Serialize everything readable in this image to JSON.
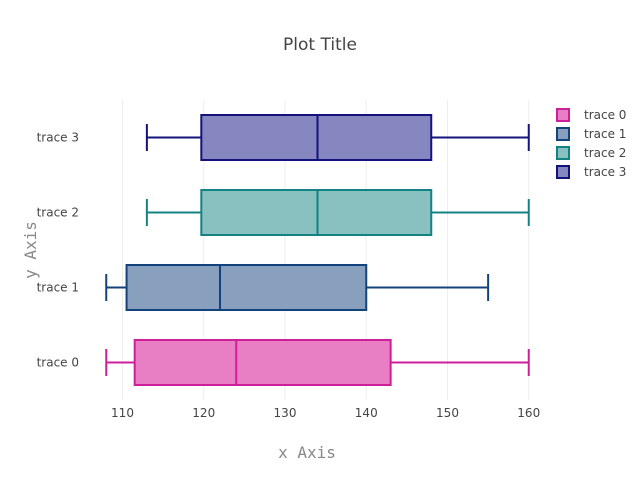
{
  "chart_data": {
    "type": "box",
    "title": "Plot Title",
    "xlabel": "x Axis",
    "ylabel": "y Axis",
    "xlim": [
      106,
      162
    ],
    "xticks": [
      110,
      120,
      130,
      140,
      150,
      160
    ],
    "grid": true,
    "legend_position": "top-right",
    "series": [
      {
        "name": "trace 0",
        "min": 108,
        "q1": 111.5,
        "median": 124,
        "q3": 143,
        "max": 160,
        "color": "#cc1f99",
        "fill": "#e87ec4"
      },
      {
        "name": "trace 1",
        "min": 108,
        "q1": 110.5,
        "median": 122,
        "q3": 140,
        "max": 155,
        "color": "#13437b",
        "fill": "#889fbd"
      },
      {
        "name": "trace 2",
        "min": 113,
        "q1": 119.7,
        "median": 134,
        "q3": 148,
        "max": 160,
        "color": "#138282",
        "fill": "#89c0c0"
      },
      {
        "name": "trace 3",
        "min": 113,
        "q1": 119.7,
        "median": 134,
        "q3": 148,
        "max": 160,
        "color": "#13137b",
        "fill": "#8686c0"
      }
    ]
  }
}
